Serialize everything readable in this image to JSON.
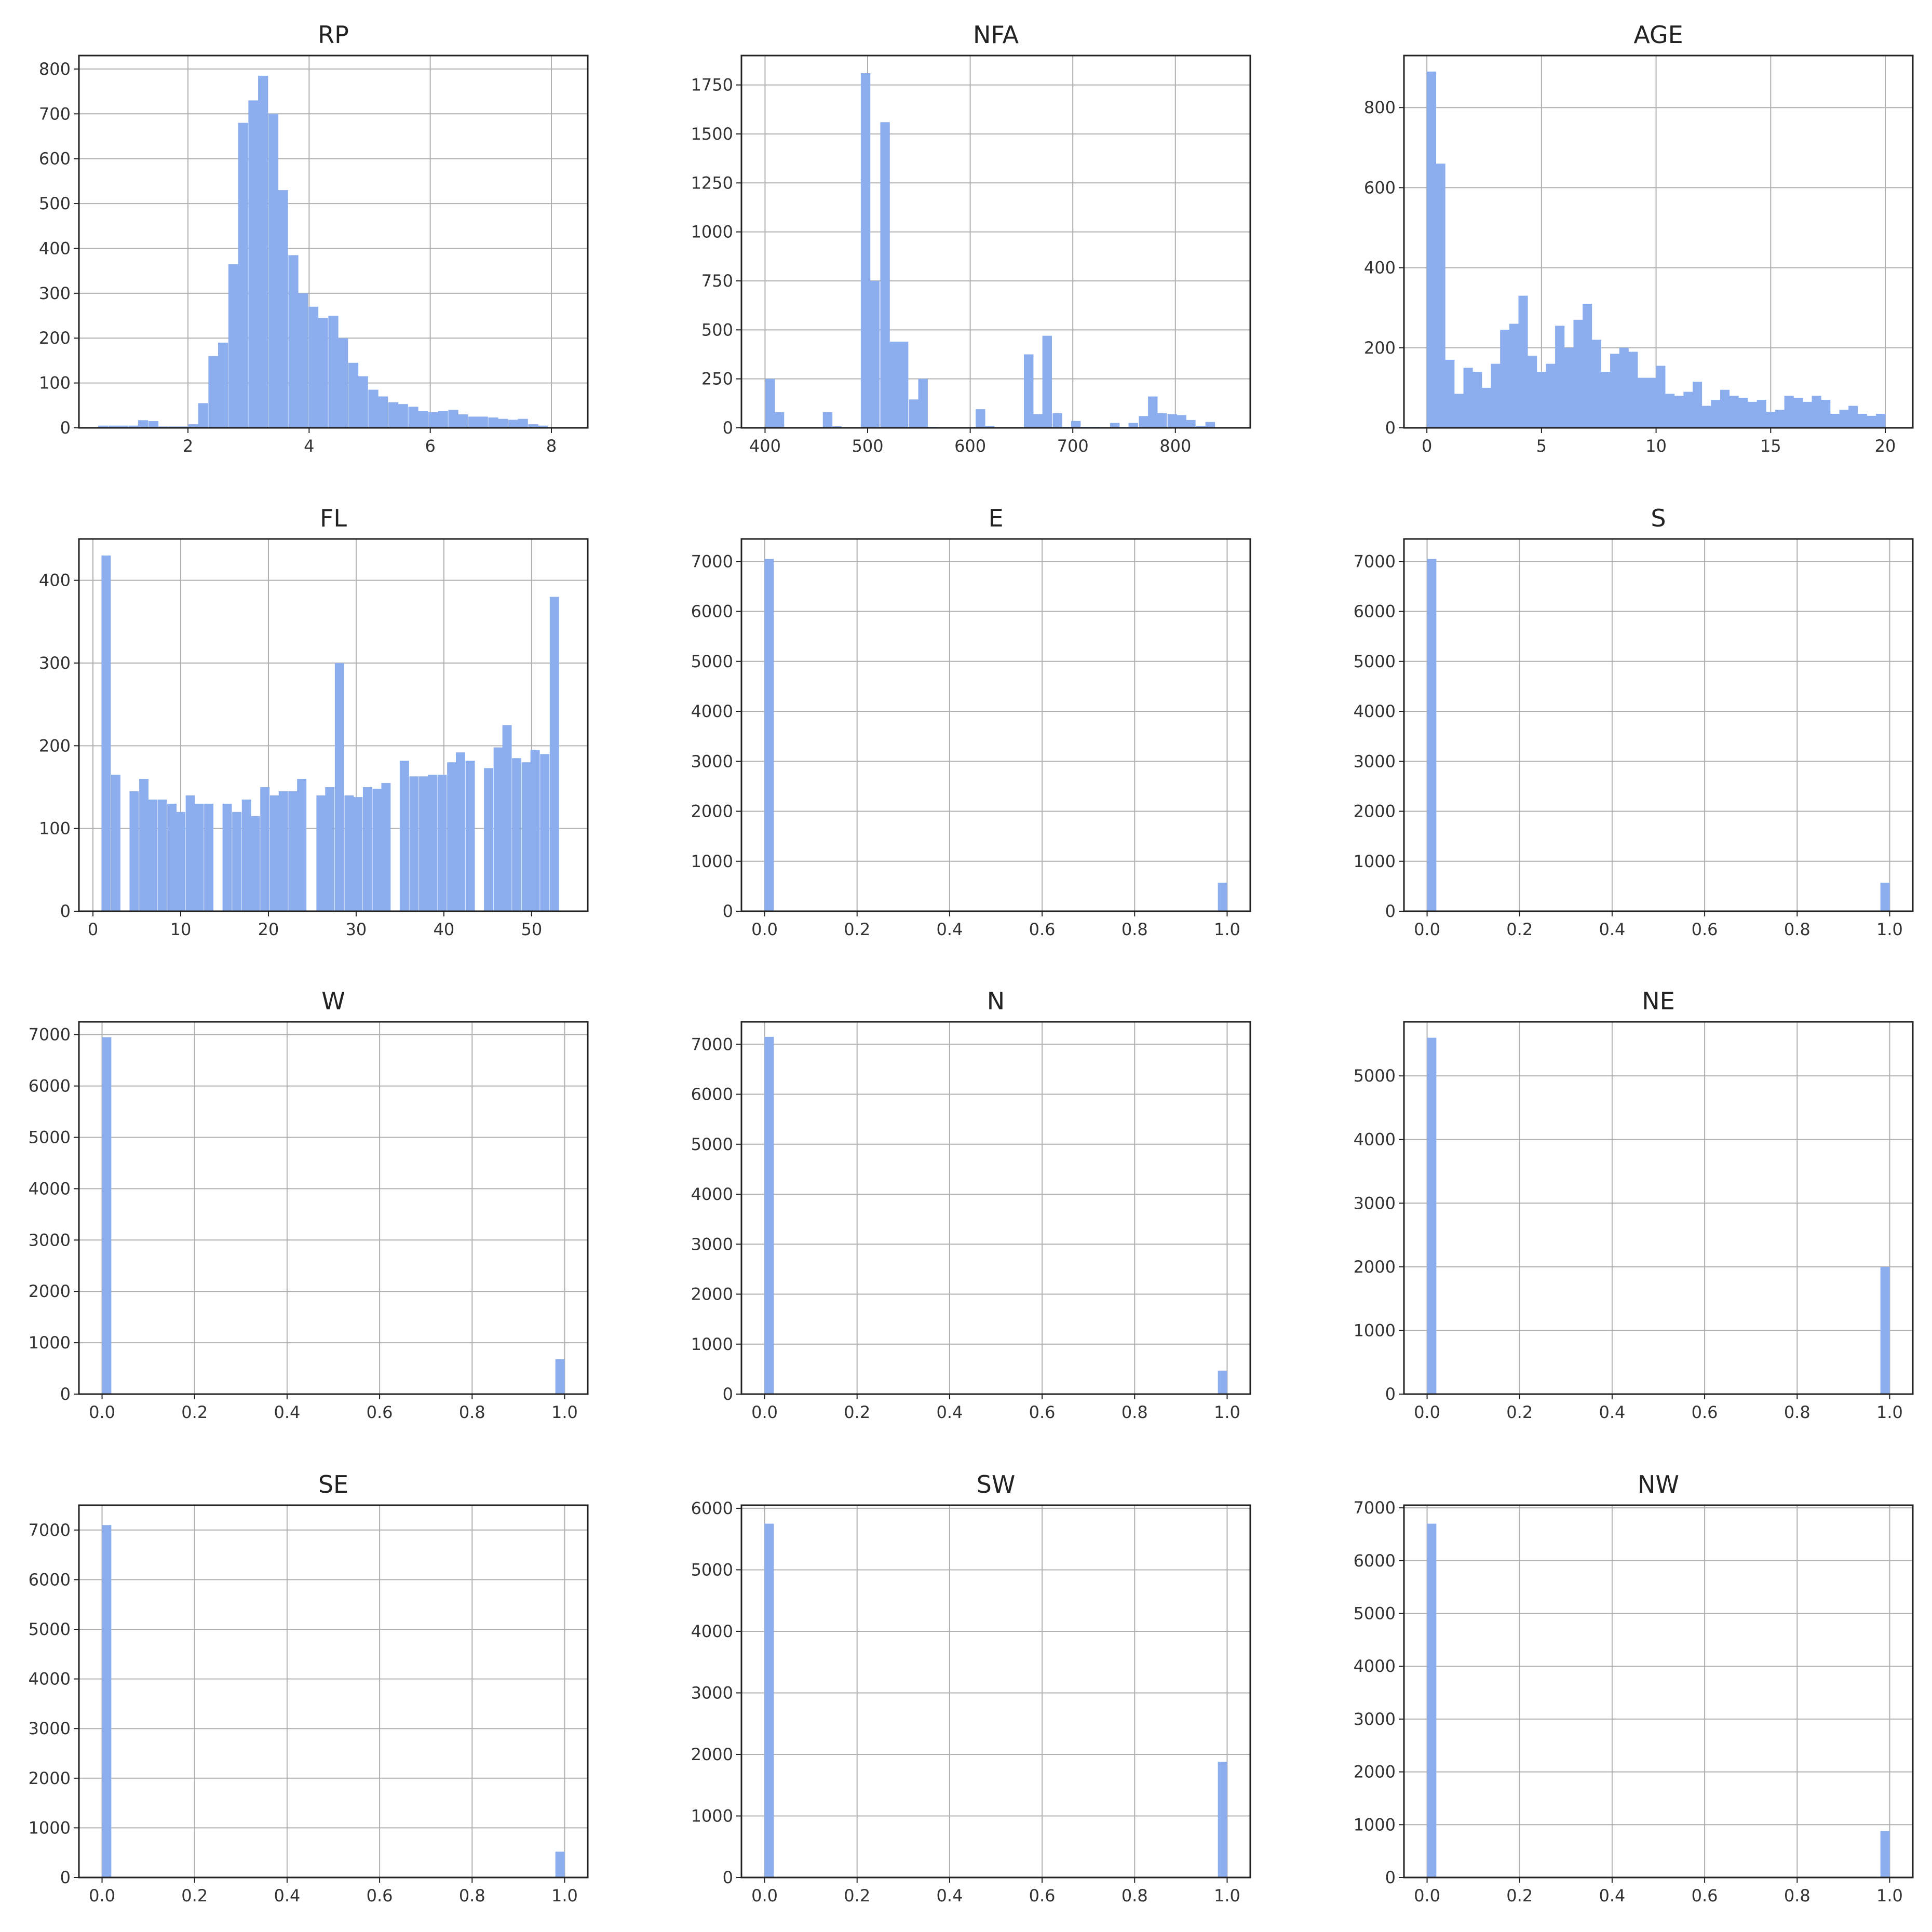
{
  "colors": {
    "bar": "#8caeef",
    "grid": "#b0b0b0",
    "frame": "#222222",
    "background": "#ffffff"
  },
  "chart_data": [
    {
      "type": "bar",
      "title": "RP",
      "xlim": [
        0.2,
        8.6
      ],
      "ylim": [
        0,
        830
      ],
      "bin_width": 0.165,
      "xticks": [
        {
          "v": 2,
          "label": "2"
        },
        {
          "v": 4,
          "label": "4"
        },
        {
          "v": 6,
          "label": "6"
        },
        {
          "v": 8,
          "label": "8"
        }
      ],
      "yticks": [
        {
          "v": 0,
          "label": "0"
        },
        {
          "v": 100,
          "label": "100"
        },
        {
          "v": 200,
          "label": "200"
        },
        {
          "v": 300,
          "label": "300"
        },
        {
          "v": 400,
          "label": "400"
        },
        {
          "v": 500,
          "label": "500"
        },
        {
          "v": 600,
          "label": "600"
        },
        {
          "v": 700,
          "label": "700"
        },
        {
          "v": 800,
          "label": "800"
        }
      ],
      "x": [
        0.6,
        0.77,
        0.93,
        1.1,
        1.26,
        1.43,
        1.59,
        1.76,
        1.92,
        2.09,
        2.25,
        2.42,
        2.58,
        2.75,
        2.91,
        3.08,
        3.24,
        3.41,
        3.57,
        3.74,
        3.9,
        4.07,
        4.23,
        4.4,
        4.56,
        4.73,
        4.89,
        5.06,
        5.22,
        5.39,
        5.55,
        5.72,
        5.88,
        6.05,
        6.21,
        6.38,
        6.54,
        6.71,
        6.87,
        7.04,
        7.2,
        7.37,
        7.53,
        7.7,
        7.86
      ],
      "values": [
        5,
        5,
        5,
        5,
        17,
        15,
        3,
        3,
        3,
        8,
        55,
        160,
        190,
        365,
        680,
        730,
        785,
        700,
        530,
        385,
        300,
        270,
        245,
        250,
        200,
        145,
        115,
        85,
        70,
        57,
        53,
        47,
        37,
        35,
        37,
        40,
        30,
        25,
        25,
        23,
        20,
        18,
        20,
        8,
        5
      ]
    },
    {
      "type": "bar",
      "title": "NFA",
      "xlim": [
        377,
        873
      ],
      "ylim": [
        0,
        1900
      ],
      "bin_width": 9.3,
      "xticks": [
        {
          "v": 400,
          "label": "400"
        },
        {
          "v": 500,
          "label": "500"
        },
        {
          "v": 600,
          "label": "600"
        },
        {
          "v": 700,
          "label": "700"
        },
        {
          "v": 800,
          "label": "800"
        }
      ],
      "yticks": [
        {
          "v": 0,
          "label": "0"
        },
        {
          "v": 250,
          "label": "250"
        },
        {
          "v": 500,
          "label": "500"
        },
        {
          "v": 750,
          "label": "750"
        },
        {
          "v": 1000,
          "label": "1000"
        },
        {
          "v": 1250,
          "label": "1250"
        },
        {
          "v": 1500,
          "label": "1500"
        },
        {
          "v": 1750,
          "label": "1750"
        }
      ],
      "x": [
        405,
        414,
        423,
        433,
        442,
        451,
        461,
        470,
        479,
        489,
        498,
        507,
        517,
        526,
        535,
        545,
        554,
        563,
        573,
        582,
        591,
        601,
        610,
        619,
        629,
        638,
        647,
        657,
        666,
        675,
        685,
        694,
        703,
        713,
        722,
        731,
        741,
        750,
        759,
        769,
        778,
        787,
        797,
        806,
        815,
        825,
        834,
        843
      ],
      "values": [
        250,
        80,
        0,
        0,
        0,
        0,
        80,
        8,
        0,
        0,
        1810,
        750,
        1560,
        440,
        440,
        145,
        250,
        5,
        0,
        0,
        0,
        0,
        95,
        10,
        0,
        0,
        0,
        375,
        70,
        470,
        75,
        5,
        35,
        5,
        5,
        0,
        25,
        5,
        25,
        60,
        160,
        75,
        70,
        65,
        40,
        10,
        30,
        0
      ]
    },
    {
      "type": "bar",
      "title": "AGE",
      "xlim": [
        -1,
        21.2
      ],
      "ylim": [
        0,
        930
      ],
      "bin_width": 0.41,
      "xticks": [
        {
          "v": 0,
          "label": "0"
        },
        {
          "v": 5,
          "label": "5"
        },
        {
          "v": 10,
          "label": "10"
        },
        {
          "v": 15,
          "label": "15"
        },
        {
          "v": 20,
          "label": "20"
        }
      ],
      "yticks": [
        {
          "v": 0,
          "label": "0"
        },
        {
          "v": 200,
          "label": "200"
        },
        {
          "v": 400,
          "label": "400"
        },
        {
          "v": 600,
          "label": "600"
        },
        {
          "v": 800,
          "label": "800"
        }
      ],
      "x": [
        0.2,
        0.6,
        1.0,
        1.4,
        1.8,
        2.2,
        2.6,
        3.0,
        3.4,
        3.8,
        4.2,
        4.6,
        5.0,
        5.4,
        5.8,
        6.2,
        6.6,
        7.0,
        7.4,
        7.8,
        8.2,
        8.6,
        9.0,
        9.4,
        9.8,
        10.2,
        10.6,
        11.0,
        11.4,
        11.8,
        12.2,
        12.6,
        13.0,
        13.4,
        13.8,
        14.2,
        14.6,
        15.0,
        15.4,
        15.8,
        16.2,
        16.6,
        17.0,
        17.4,
        17.8,
        18.2,
        18.6,
        19.0,
        19.4,
        19.8
      ],
      "values": [
        890,
        660,
        170,
        85,
        150,
        140,
        100,
        160,
        245,
        260,
        330,
        180,
        140,
        160,
        255,
        200,
        270,
        310,
        220,
        140,
        185,
        200,
        190,
        125,
        125,
        155,
        85,
        80,
        90,
        115,
        55,
        70,
        95,
        80,
        75,
        65,
        70,
        40,
        45,
        80,
        75,
        65,
        80,
        70,
        35,
        45,
        55,
        35,
        30,
        35
      ]
    },
    {
      "type": "bar",
      "title": "FL",
      "xlim": [
        -1.6,
        56.4
      ],
      "ylim": [
        0,
        450
      ],
      "bin_width": 1.06,
      "xticks": [
        {
          "v": 0,
          "label": "0"
        },
        {
          "v": 10,
          "label": "10"
        },
        {
          "v": 20,
          "label": "20"
        },
        {
          "v": 30,
          "label": "30"
        },
        {
          "v": 40,
          "label": "40"
        },
        {
          "v": 50,
          "label": "50"
        }
      ],
      "yticks": [
        {
          "v": 0,
          "label": "0"
        },
        {
          "v": 100,
          "label": "100"
        },
        {
          "v": 200,
          "label": "200"
        },
        {
          "v": 300,
          "label": "300"
        },
        {
          "v": 400,
          "label": "400"
        }
      ],
      "x": [
        1.5,
        2.6,
        3.6,
        4.7,
        5.8,
        6.8,
        7.9,
        9.0,
        10.0,
        11.1,
        12.1,
        13.2,
        14.3,
        15.3,
        16.4,
        17.5,
        18.5,
        19.6,
        20.7,
        21.7,
        22.8,
        23.8,
        24.9,
        26.0,
        27.0,
        28.1,
        29.2,
        30.2,
        31.3,
        32.4,
        33.4,
        34.5,
        35.5,
        36.6,
        37.7,
        38.7,
        39.8,
        40.9,
        41.9,
        43.0,
        44.1,
        45.1,
        46.2,
        47.2,
        48.3,
        49.4,
        50.4,
        51.5,
        52.6
      ],
      "values": [
        430,
        165,
        0,
        145,
        160,
        135,
        135,
        130,
        120,
        140,
        130,
        130,
        0,
        130,
        120,
        135,
        115,
        150,
        140,
        145,
        145,
        160,
        0,
        140,
        150,
        300,
        140,
        138,
        150,
        148,
        155,
        0,
        182,
        163,
        163,
        165,
        165,
        180,
        192,
        182,
        0,
        173,
        198,
        225,
        185,
        180,
        195,
        190,
        380
      ]
    },
    {
      "type": "bar",
      "title": "E",
      "xlim": [
        -0.05,
        1.05
      ],
      "ylim": [
        0,
        7450
      ],
      "bin_width": 0.02,
      "xticks": [
        {
          "v": 0,
          "label": "0.0"
        },
        {
          "v": 0.2,
          "label": "0.2"
        },
        {
          "v": 0.4,
          "label": "0.4"
        },
        {
          "v": 0.6,
          "label": "0.6"
        },
        {
          "v": 0.8,
          "label": "0.8"
        },
        {
          "v": 1.0,
          "label": "1.0"
        }
      ],
      "yticks": [
        {
          "v": 0,
          "label": "0"
        },
        {
          "v": 1000,
          "label": "1000"
        },
        {
          "v": 2000,
          "label": "2000"
        },
        {
          "v": 3000,
          "label": "3000"
        },
        {
          "v": 4000,
          "label": "4000"
        },
        {
          "v": 5000,
          "label": "5000"
        },
        {
          "v": 6000,
          "label": "6000"
        },
        {
          "v": 7000,
          "label": "7000"
        }
      ],
      "x": [
        0.01,
        0.99
      ],
      "values": [
        7050,
        570
      ]
    },
    {
      "type": "bar",
      "title": "S",
      "xlim": [
        -0.05,
        1.05
      ],
      "ylim": [
        0,
        7450
      ],
      "bin_width": 0.02,
      "xticks": [
        {
          "v": 0,
          "label": "0.0"
        },
        {
          "v": 0.2,
          "label": "0.2"
        },
        {
          "v": 0.4,
          "label": "0.4"
        },
        {
          "v": 0.6,
          "label": "0.6"
        },
        {
          "v": 0.8,
          "label": "0.8"
        },
        {
          "v": 1.0,
          "label": "1.0"
        }
      ],
      "yticks": [
        {
          "v": 0,
          "label": "0"
        },
        {
          "v": 1000,
          "label": "1000"
        },
        {
          "v": 2000,
          "label": "2000"
        },
        {
          "v": 3000,
          "label": "3000"
        },
        {
          "v": 4000,
          "label": "4000"
        },
        {
          "v": 5000,
          "label": "5000"
        },
        {
          "v": 6000,
          "label": "6000"
        },
        {
          "v": 7000,
          "label": "7000"
        }
      ],
      "x": [
        0.01,
        0.99
      ],
      "values": [
        7050,
        570
      ]
    },
    {
      "type": "bar",
      "title": "W",
      "xlim": [
        -0.05,
        1.05
      ],
      "ylim": [
        0,
        7250
      ],
      "bin_width": 0.02,
      "xticks": [
        {
          "v": 0,
          "label": "0.0"
        },
        {
          "v": 0.2,
          "label": "0.2"
        },
        {
          "v": 0.4,
          "label": "0.4"
        },
        {
          "v": 0.6,
          "label": "0.6"
        },
        {
          "v": 0.8,
          "label": "0.8"
        },
        {
          "v": 1.0,
          "label": "1.0"
        }
      ],
      "yticks": [
        {
          "v": 0,
          "label": "0"
        },
        {
          "v": 1000,
          "label": "1000"
        },
        {
          "v": 2000,
          "label": "2000"
        },
        {
          "v": 3000,
          "label": "3000"
        },
        {
          "v": 4000,
          "label": "4000"
        },
        {
          "v": 5000,
          "label": "5000"
        },
        {
          "v": 6000,
          "label": "6000"
        },
        {
          "v": 7000,
          "label": "7000"
        }
      ],
      "x": [
        0.01,
        0.99
      ],
      "values": [
        6950,
        680
      ]
    },
    {
      "type": "bar",
      "title": "N",
      "xlim": [
        -0.05,
        1.05
      ],
      "ylim": [
        0,
        7450
      ],
      "bin_width": 0.02,
      "xticks": [
        {
          "v": 0,
          "label": "0.0"
        },
        {
          "v": 0.2,
          "label": "0.2"
        },
        {
          "v": 0.4,
          "label": "0.4"
        },
        {
          "v": 0.6,
          "label": "0.6"
        },
        {
          "v": 0.8,
          "label": "0.8"
        },
        {
          "v": 1.0,
          "label": "1.0"
        }
      ],
      "yticks": [
        {
          "v": 0,
          "label": "0"
        },
        {
          "v": 1000,
          "label": "1000"
        },
        {
          "v": 2000,
          "label": "2000"
        },
        {
          "v": 3000,
          "label": "3000"
        },
        {
          "v": 4000,
          "label": "4000"
        },
        {
          "v": 5000,
          "label": "5000"
        },
        {
          "v": 6000,
          "label": "6000"
        },
        {
          "v": 7000,
          "label": "7000"
        }
      ],
      "x": [
        0.01,
        0.99
      ],
      "values": [
        7150,
        470
      ]
    },
    {
      "type": "bar",
      "title": "NE",
      "xlim": [
        -0.05,
        1.05
      ],
      "ylim": [
        0,
        5850
      ],
      "bin_width": 0.02,
      "xticks": [
        {
          "v": 0,
          "label": "0.0"
        },
        {
          "v": 0.2,
          "label": "0.2"
        },
        {
          "v": 0.4,
          "label": "0.4"
        },
        {
          "v": 0.6,
          "label": "0.6"
        },
        {
          "v": 0.8,
          "label": "0.8"
        },
        {
          "v": 1.0,
          "label": "1.0"
        }
      ],
      "yticks": [
        {
          "v": 0,
          "label": "0"
        },
        {
          "v": 1000,
          "label": "1000"
        },
        {
          "v": 2000,
          "label": "2000"
        },
        {
          "v": 3000,
          "label": "3000"
        },
        {
          "v": 4000,
          "label": "4000"
        },
        {
          "v": 5000,
          "label": "5000"
        }
      ],
      "x": [
        0.01,
        0.99
      ],
      "values": [
        5600,
        2000
      ]
    },
    {
      "type": "bar",
      "title": "SE",
      "xlim": [
        -0.05,
        1.05
      ],
      "ylim": [
        0,
        7500
      ],
      "bin_width": 0.02,
      "xticks": [
        {
          "v": 0,
          "label": "0.0"
        },
        {
          "v": 0.2,
          "label": "0.2"
        },
        {
          "v": 0.4,
          "label": "0.4"
        },
        {
          "v": 0.6,
          "label": "0.6"
        },
        {
          "v": 0.8,
          "label": "0.8"
        },
        {
          "v": 1.0,
          "label": "1.0"
        }
      ],
      "yticks": [
        {
          "v": 0,
          "label": "0"
        },
        {
          "v": 1000,
          "label": "1000"
        },
        {
          "v": 2000,
          "label": "2000"
        },
        {
          "v": 3000,
          "label": "3000"
        },
        {
          "v": 4000,
          "label": "4000"
        },
        {
          "v": 5000,
          "label": "5000"
        },
        {
          "v": 6000,
          "label": "6000"
        },
        {
          "v": 7000,
          "label": "7000"
        }
      ],
      "x": [
        0.01,
        0.99
      ],
      "values": [
        7100,
        520
      ]
    },
    {
      "type": "bar",
      "title": "SW",
      "xlim": [
        -0.05,
        1.05
      ],
      "ylim": [
        0,
        6050
      ],
      "bin_width": 0.02,
      "xticks": [
        {
          "v": 0,
          "label": "0.0"
        },
        {
          "v": 0.2,
          "label": "0.2"
        },
        {
          "v": 0.4,
          "label": "0.4"
        },
        {
          "v": 0.6,
          "label": "0.6"
        },
        {
          "v": 0.8,
          "label": "0.8"
        },
        {
          "v": 1.0,
          "label": "1.0"
        }
      ],
      "yticks": [
        {
          "v": 0,
          "label": "0"
        },
        {
          "v": 1000,
          "label": "1000"
        },
        {
          "v": 2000,
          "label": "2000"
        },
        {
          "v": 3000,
          "label": "3000"
        },
        {
          "v": 4000,
          "label": "4000"
        },
        {
          "v": 5000,
          "label": "5000"
        },
        {
          "v": 6000,
          "label": "6000"
        }
      ],
      "x": [
        0.01,
        0.99
      ],
      "values": [
        5750,
        1880
      ]
    },
    {
      "type": "bar",
      "title": "NW",
      "xlim": [
        -0.05,
        1.05
      ],
      "ylim": [
        0,
        7050
      ],
      "bin_width": 0.02,
      "xticks": [
        {
          "v": 0,
          "label": "0.0"
        },
        {
          "v": 0.2,
          "label": "0.2"
        },
        {
          "v": 0.4,
          "label": "0.4"
        },
        {
          "v": 0.6,
          "label": "0.6"
        },
        {
          "v": 0.8,
          "label": "0.8"
        },
        {
          "v": 1.0,
          "label": "1.0"
        }
      ],
      "yticks": [
        {
          "v": 0,
          "label": "0"
        },
        {
          "v": 1000,
          "label": "1000"
        },
        {
          "v": 2000,
          "label": "2000"
        },
        {
          "v": 3000,
          "label": "3000"
        },
        {
          "v": 4000,
          "label": "4000"
        },
        {
          "v": 5000,
          "label": "5000"
        },
        {
          "v": 6000,
          "label": "6000"
        },
        {
          "v": 7000,
          "label": "7000"
        }
      ],
      "x": [
        0.01,
        0.99
      ],
      "values": [
        6700,
        880
      ]
    }
  ]
}
